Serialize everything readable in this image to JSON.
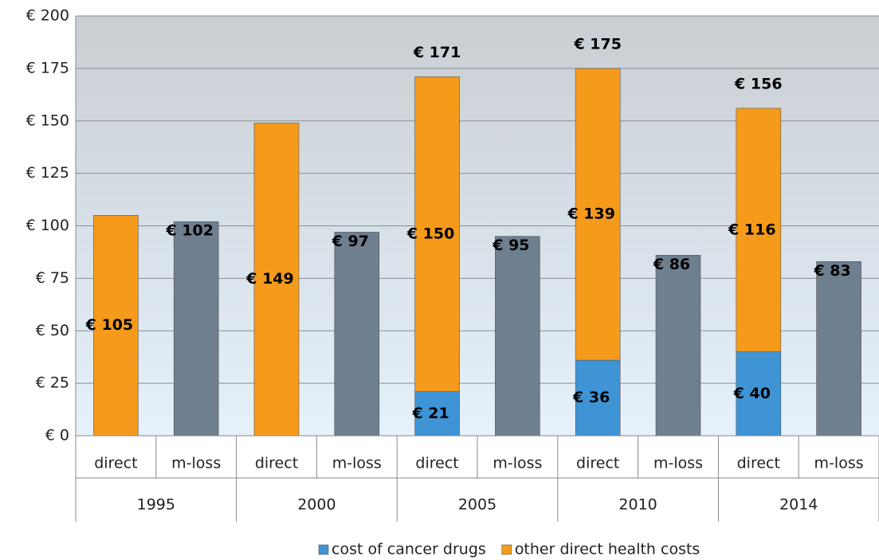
{
  "chart_data": {
    "type": "stacked_bar",
    "categories": [
      "direct",
      "m-loss",
      "direct",
      "m-loss",
      "direct",
      "m-loss",
      "direct",
      "m-loss",
      "direct",
      "m-loss"
    ],
    "groups": [
      "1995",
      "2000",
      "2005",
      "2010",
      "2014"
    ],
    "series": [
      {
        "name": "cost of cancer drugs",
        "color": "#3f94d6",
        "values": [
          null,
          null,
          null,
          null,
          21,
          null,
          36,
          null,
          40,
          null
        ],
        "value_labels": [
          null,
          null,
          null,
          null,
          "€ 21",
          null,
          "€ 36",
          null,
          "€ 40",
          null
        ]
      },
      {
        "name": "other direct health costs",
        "color": "#f59a1b",
        "values": [
          105,
          null,
          149,
          null,
          150,
          null,
          139,
          null,
          116,
          null
        ],
        "value_labels": [
          "€ 105",
          null,
          "€ 149",
          null,
          "€ 150",
          null,
          "€ 139",
          null,
          "€ 116",
          null
        ]
      },
      {
        "color": "#6e7f8f",
        "values": [
          null,
          102,
          null,
          97,
          null,
          95,
          null,
          86,
          null,
          83
        ],
        "value_labels": [
          null,
          "€ 102",
          null,
          "€ 97",
          null,
          "€ 95",
          null,
          "€ 86",
          null,
          "€ 83"
        ]
      }
    ],
    "totals": [
      null,
      null,
      null,
      null,
      171,
      null,
      175,
      null,
      156,
      null
    ],
    "total_labels": [
      null,
      null,
      null,
      null,
      "€ 171",
      null,
      "€ 175",
      null,
      "€ 156",
      null
    ],
    "ylim": [
      0,
      200
    ],
    "yticks": [
      {
        "value": 0,
        "label": "€ 0"
      },
      {
        "value": 25,
        "label": "€ 25"
      },
      {
        "value": 50,
        "label": "€ 50"
      },
      {
        "value": 75,
        "label": "€ 75"
      },
      {
        "value": 100,
        "label": "€ 100"
      },
      {
        "value": 125,
        "label": "€ 125"
      },
      {
        "value": 150,
        "label": "€ 150"
      },
      {
        "value": 175,
        "label": "€ 175"
      },
      {
        "value": 200,
        "label": "€ 200"
      }
    ],
    "grid": true,
    "legend": "bottom"
  }
}
